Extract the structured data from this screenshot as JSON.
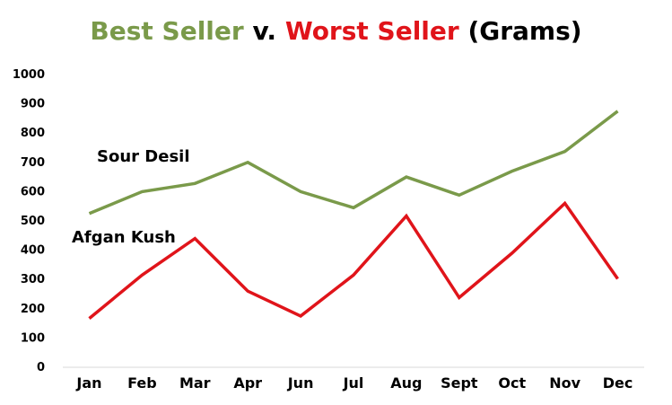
{
  "colors": {
    "best": "#7a9a4a",
    "worst": "#e0141a",
    "text": "#000000"
  },
  "title": {
    "part1": "Best Seller",
    "part2": " v. ",
    "part3": "Worst Seller",
    "part4": " (Grams)"
  },
  "chart_data": {
    "type": "line",
    "title": "Best Seller v. Worst Seller (Grams)",
    "categories": [
      "Jan",
      "Feb",
      "Mar",
      "Apr",
      "Jun",
      "Jul",
      "Aug",
      "Sept",
      "Oct",
      "Nov",
      "Dec"
    ],
    "ylim": [
      0,
      1000
    ],
    "yticks": [
      0,
      100,
      200,
      300,
      400,
      500,
      600,
      700,
      800,
      900,
      1000
    ],
    "grid": false,
    "series": [
      {
        "name": "Sour Desil",
        "color": "#7a9a4a",
        "values": [
          525,
          600,
          628,
          700,
          600,
          545,
          650,
          588,
          670,
          737,
          875
        ]
      },
      {
        "name": "Afgan Kush",
        "color": "#e0141a",
        "values": [
          167,
          315,
          440,
          260,
          175,
          315,
          517,
          238,
          390,
          560,
          302
        ]
      }
    ]
  }
}
